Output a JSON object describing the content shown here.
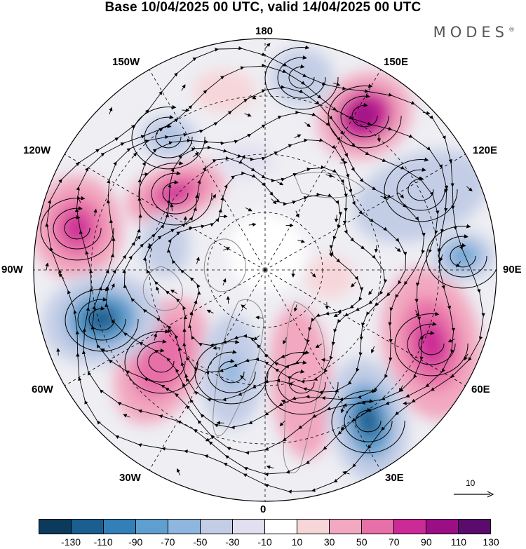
{
  "header": {
    "title": "Base 10/04/2025 00 UTC, valid 14/04/2025 00 UTC",
    "brand": "MODES",
    "brand_mark": "®"
  },
  "map": {
    "projection": "north-polar-stereographic",
    "longitude_labels": {
      "top": "180",
      "bottom": "0",
      "left": "90W",
      "right": "90E",
      "upper_left_1": "150W",
      "upper_left_2": "120W",
      "lower_left_1": "60W",
      "lower_left_2": "30W",
      "upper_right_1": "150E",
      "upper_right_2": "120E",
      "lower_right_1": "60E",
      "lower_right_2": "30E"
    },
    "reference_vector": {
      "value": "10"
    }
  },
  "colorbar": {
    "colors": [
      "#0b3a5c",
      "#1a5f8f",
      "#3380b8",
      "#5e9fcf",
      "#8fb6de",
      "#c3cde6",
      "#e2e0f0",
      "#ffffff",
      "#f7d6d9",
      "#f2a8c0",
      "#e870a8",
      "#cc2a96",
      "#9c0e86",
      "#5b0a6e"
    ],
    "tick_labels": [
      "-130",
      "-110",
      "-90",
      "-70",
      "-50",
      "-30",
      "-10",
      "10",
      "30",
      "50",
      "70",
      "90",
      "110",
      "130"
    ]
  }
}
